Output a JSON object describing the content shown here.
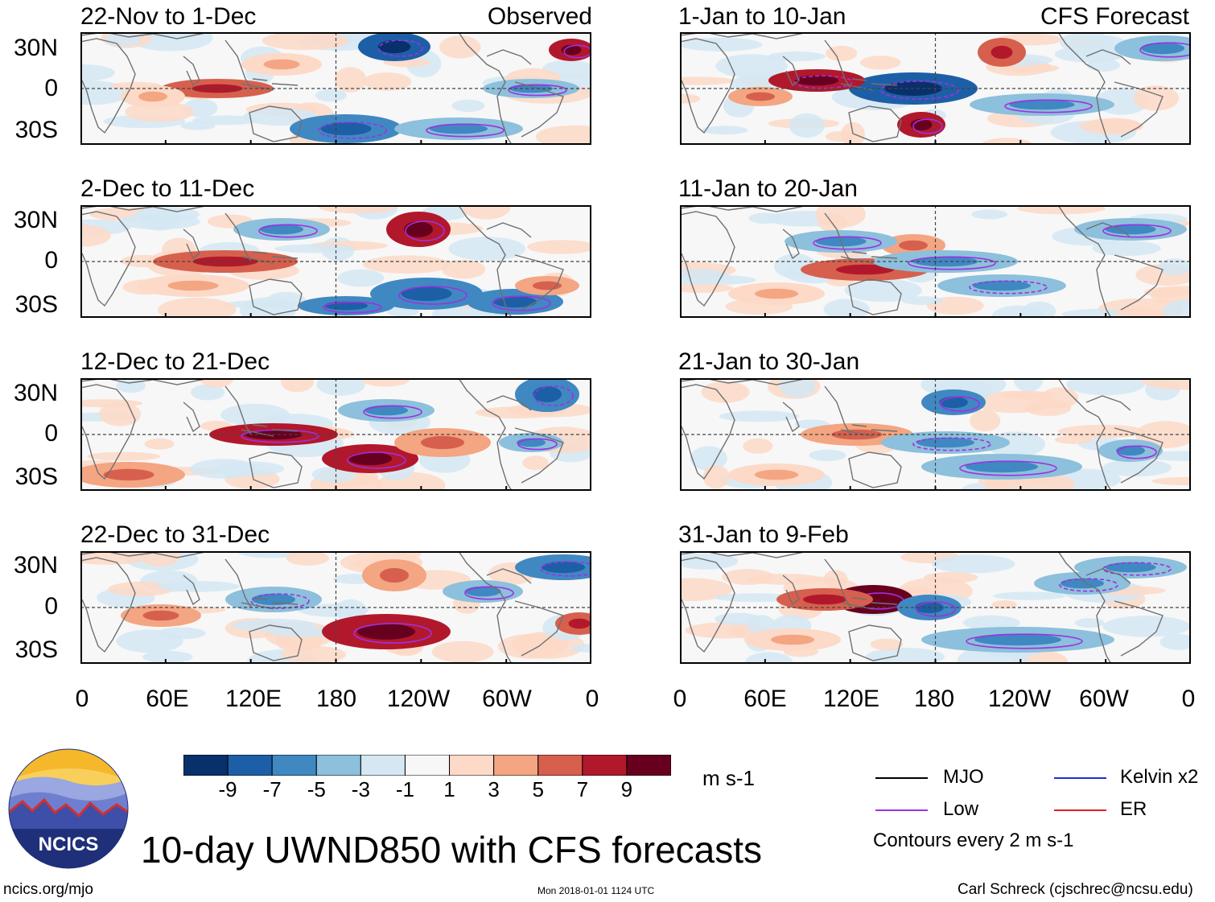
{
  "figure": {
    "title": "10-day UWND850 with CFS forecasts",
    "url": "ncics.org/mjo",
    "timestamp": "Mon 2018-01-01 1124 UTC",
    "author": "Carl Schreck (cjschrec@ncsu.edu)",
    "logo_text": "NCICS",
    "units": "m s-1",
    "contour_note": "Contours every 2 m s-1"
  },
  "chart_data": {
    "type": "heatmap",
    "variable": "850-hPa zonal wind anomaly",
    "units": "m s-1",
    "lat_ticks": [
      "30N",
      "0",
      "30S"
    ],
    "lon_ticks": [
      "0",
      "60E",
      "120E",
      "180",
      "120W",
      "60W",
      "0"
    ],
    "observed_tag": "Observed",
    "forecast_tag": "CFS Forecast",
    "panels": [
      {
        "title": "22-Nov to 1-Dec",
        "source": "Observed"
      },
      {
        "title": "2-Dec to 11-Dec",
        "source": "Observed"
      },
      {
        "title": "12-Dec to 21-Dec",
        "source": "Observed"
      },
      {
        "title": "22-Dec to 31-Dec",
        "source": "Observed"
      },
      {
        "title": "1-Jan to 10-Jan",
        "source": "CFS Forecast"
      },
      {
        "title": "11-Jan to 20-Jan",
        "source": "CFS Forecast"
      },
      {
        "title": "21-Jan to 30-Jan",
        "source": "CFS Forecast"
      },
      {
        "title": "31-Jan to 9-Feb",
        "source": "CFS Forecast"
      }
    ],
    "colorbar": {
      "labels": [
        "-9",
        "-7",
        "-5",
        "-3",
        "-1",
        "1",
        "3",
        "5",
        "7",
        "9"
      ],
      "colors": [
        "#08306b",
        "#1d5fa6",
        "#3f88c2",
        "#8cc0dc",
        "#d4e7f3",
        "#f7f7f7",
        "#fdd9c7",
        "#f4a582",
        "#d6604d",
        "#b2182b",
        "#67001f"
      ]
    },
    "legend": [
      {
        "label": "MJO",
        "color": "#000000"
      },
      {
        "label": "Kelvin x2",
        "color": "#1f2fd0"
      },
      {
        "label": "Low",
        "color": "#a030e0"
      },
      {
        "label": "ER",
        "color": "#e02020"
      }
    ]
  }
}
